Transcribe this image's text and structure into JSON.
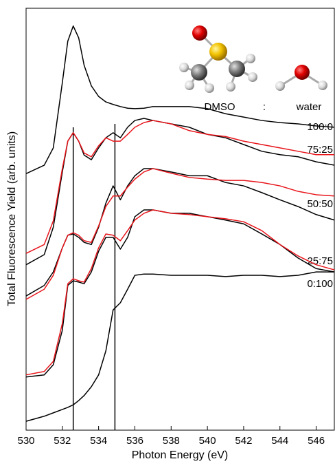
{
  "chart_data": {
    "type": "line",
    "xlabel": "Photon Energy (eV)",
    "ylabel": "Total Fluorescence Yield (arb. units)",
    "xlim": [
      530,
      547
    ],
    "xticks": [
      530,
      532,
      534,
      536,
      538,
      540,
      542,
      544,
      546
    ],
    "ylim": [
      0,
      100
    ],
    "reference_lines": [
      532.6,
      534.9
    ],
    "annotations": [
      "DMSO",
      ":",
      "water"
    ],
    "x": [
      530,
      531,
      531.5,
      532,
      532.3,
      532.6,
      532.9,
      533.2,
      533.6,
      534,
      534.4,
      534.8,
      535.2,
      535.6,
      536,
      536.5,
      537,
      538,
      539,
      540,
      541,
      542,
      543,
      544,
      545,
      546,
      547
    ],
    "series": [
      {
        "name": "100:0",
        "color": "#000000",
        "values": [
          60.8,
          62.8,
          66.9,
          82.4,
          92.2,
          95.8,
          93.0,
          86.5,
          81.6,
          79.1,
          77.8,
          77.2,
          76.7,
          76.3,
          76.2,
          76.3,
          76.7,
          76.7,
          76.7,
          76.2,
          75.0,
          74.2,
          73.4,
          72.9,
          72.6,
          72.1,
          71.8
        ]
      },
      {
        "name": "75:25",
        "color": "#000000",
        "values": [
          39.2,
          41.6,
          48.1,
          61.2,
          68.5,
          70.5,
          68.5,
          65.2,
          64.1,
          66.9,
          69.3,
          70.5,
          69.3,
          71.8,
          73.4,
          73.9,
          73.4,
          72.6,
          71.8,
          70.1,
          69.3,
          67.7,
          66.1,
          65.3,
          64.8,
          63.6,
          62.8
        ]
      },
      {
        "color": "#e8141a",
        "values": [
          41.9,
          44.0,
          49.6,
          62.0,
          68.5,
          70.5,
          68.5,
          65.7,
          64.8,
          67.4,
          69.3,
          68.5,
          68.5,
          70.1,
          71.8,
          72.9,
          73.4,
          72.6,
          71.0,
          70.1,
          69.6,
          68.5,
          67.7,
          66.9,
          66.1,
          65.3,
          65.3
        ]
      },
      {
        "name": "50:50",
        "color": "#000000",
        "values": [
          31.8,
          34.3,
          37.5,
          43.2,
          46.2,
          46.5,
          45.7,
          44.5,
          44.0,
          48.1,
          53.8,
          57.9,
          54.6,
          57.9,
          60.3,
          62.0,
          62.0,
          61.2,
          60.3,
          60.3,
          58.7,
          57.9,
          56.3,
          54.6,
          53.0,
          51.1,
          49.8
        ]
      },
      {
        "color": "#e8141a",
        "values": [
          31.0,
          33.4,
          36.7,
          43.2,
          46.2,
          46.8,
          46.2,
          44.9,
          44.5,
          48.4,
          53.0,
          55.5,
          55.5,
          57.6,
          59.5,
          61.2,
          62.0,
          60.9,
          59.9,
          59.5,
          59.2,
          59.2,
          58.7,
          57.9,
          56.6,
          55.8,
          55.5
        ]
      },
      {
        "name": "25:75",
        "color": "#000000",
        "values": [
          12.6,
          13.1,
          15.5,
          23.7,
          34.3,
          35.4,
          35.1,
          34.7,
          37.5,
          42.4,
          45.7,
          45.7,
          42.9,
          45.7,
          50.6,
          52.2,
          52.2,
          51.4,
          51.4,
          50.6,
          49.8,
          48.9,
          46.5,
          44.0,
          40.8,
          38.3,
          37.5
        ]
      },
      {
        "color": "#e8141a",
        "values": [
          13.1,
          13.9,
          16.3,
          25.3,
          34.7,
          35.9,
          35.4,
          35.1,
          38.3,
          43.2,
          46.5,
          46.2,
          44.9,
          47.3,
          49.8,
          51.4,
          52.2,
          51.4,
          51.1,
          50.6,
          50.1,
          49.4,
          47.3,
          44.0,
          41.3,
          39.2,
          38.0
        ]
      },
      {
        "name": "0:100",
        "color": "#000000",
        "values": [
          2.1,
          3.3,
          4.1,
          4.9,
          5.4,
          6.0,
          7.0,
          8.2,
          10.3,
          13.1,
          18.8,
          28.5,
          30.2,
          33.4,
          36.7,
          37.0,
          37.0,
          36.7,
          36.7,
          36.7,
          36.4,
          36.7,
          36.7,
          36.4,
          36.7,
          37.5,
          37.5
        ]
      }
    ]
  }
}
